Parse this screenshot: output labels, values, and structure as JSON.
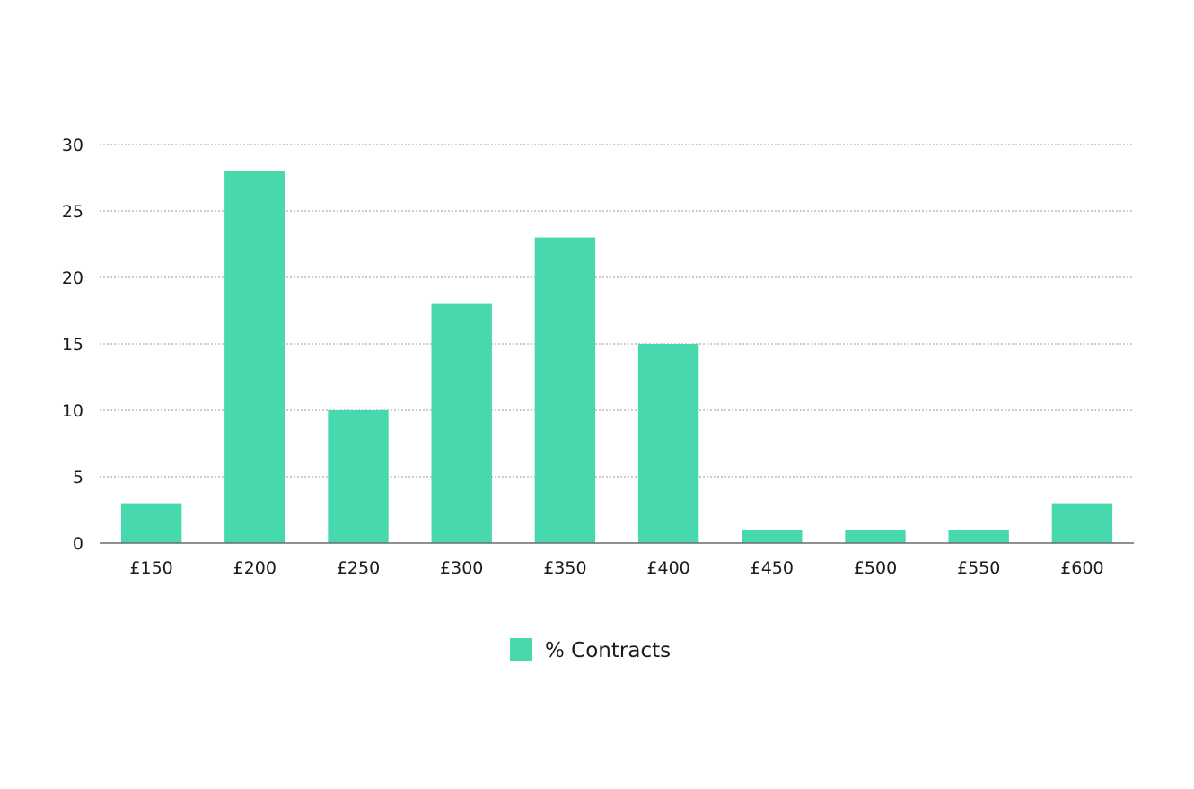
{
  "chart_data": {
    "type": "bar",
    "title": "",
    "xlabel": "",
    "ylabel": "",
    "categories": [
      "£150",
      "£200",
      "£250",
      "£300",
      "£350",
      "£400",
      "£450",
      "£500",
      "£550",
      "£600"
    ],
    "series": [
      {
        "name": "% Contracts",
        "color": "#48d8ad",
        "values": [
          3,
          28,
          10,
          18,
          23,
          15,
          1,
          1,
          1,
          3
        ]
      }
    ],
    "ylim": [
      0,
      30
    ],
    "yticks": [
      "0",
      "5",
      "10",
      "15",
      "20",
      "25",
      "30"
    ],
    "grid": true,
    "legend_position": "bottom-center"
  }
}
